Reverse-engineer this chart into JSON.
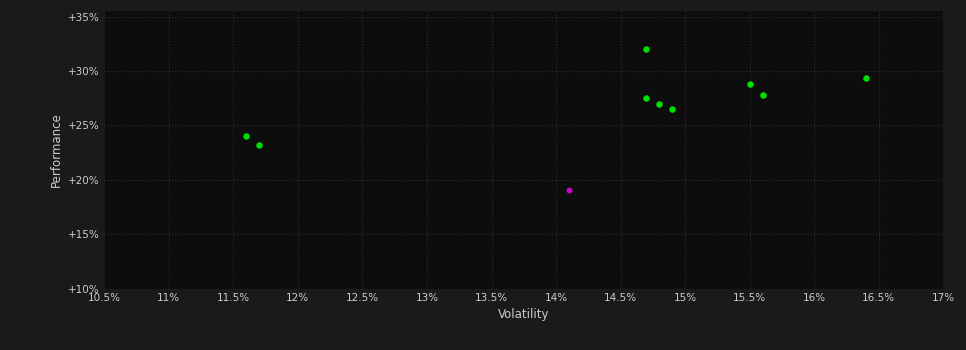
{
  "background_color": "#1a1a1a",
  "plot_bg_color": "#0d0d0d",
  "text_color": "#cccccc",
  "xlabel": "Volatility",
  "ylabel": "Performance",
  "xlim": [
    0.105,
    0.17
  ],
  "ylim": [
    0.1,
    0.355
  ],
  "xticks": [
    0.105,
    0.11,
    0.115,
    0.12,
    0.125,
    0.13,
    0.135,
    0.14,
    0.145,
    0.15,
    0.155,
    0.16,
    0.165,
    0.17
  ],
  "xtick_labels": [
    "10.5%",
    "11%",
    "11.5%",
    "12%",
    "12.5%",
    "13%",
    "13.5%",
    "14%",
    "14.5%",
    "15%",
    "15.5%",
    "16%",
    "16.5%",
    "17%"
  ],
  "yticks": [
    0.1,
    0.15,
    0.2,
    0.25,
    0.3,
    0.35
  ],
  "ytick_labels": [
    "+10%",
    "+15%",
    "+20%",
    "+25%",
    "+30%",
    "+35%"
  ],
  "green_points": [
    [
      0.116,
      0.24
    ],
    [
      0.117,
      0.232
    ],
    [
      0.147,
      0.275
    ],
    [
      0.148,
      0.27
    ],
    [
      0.149,
      0.265
    ],
    [
      0.147,
      0.32
    ],
    [
      0.155,
      0.288
    ],
    [
      0.156,
      0.278
    ],
    [
      0.164,
      0.294
    ]
  ],
  "magenta_points": [
    [
      0.141,
      0.191
    ]
  ],
  "green_color": "#00dd00",
  "magenta_color": "#cc00cc",
  "marker_size": 22,
  "marker_size_magenta": 18,
  "tick_fontsize": 7.5,
  "label_fontsize": 8.5
}
